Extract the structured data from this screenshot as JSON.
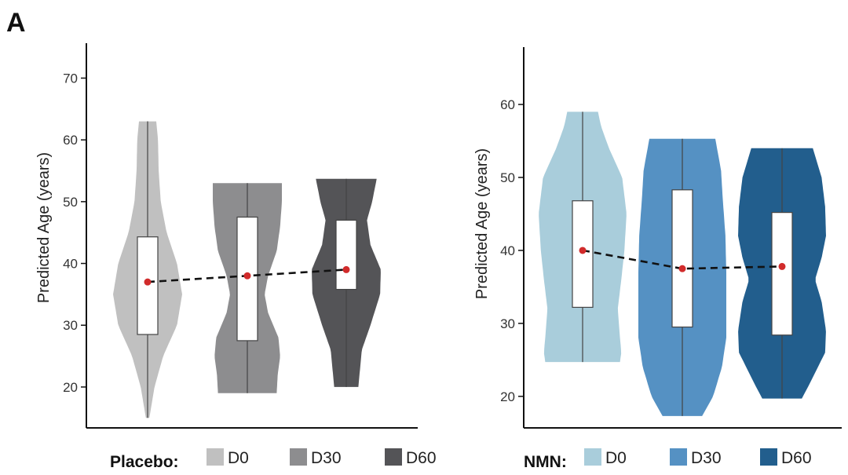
{
  "panel_label": "A",
  "chart_data": [
    {
      "type": "violin",
      "legend_title": "Placebo:",
      "ylabel": "Predicted Age (years)",
      "ylim": [
        13,
        74
      ],
      "yticks": [
        20,
        30,
        40,
        50,
        60,
        70
      ],
      "legend_position": "bottom",
      "grid": false,
      "mean_line": "dashed",
      "series": [
        {
          "name": "D0",
          "color": "#c0c0c0",
          "min": 15,
          "max": 63,
          "q1": 28.5,
          "median": 37,
          "q3": 44.3,
          "mean": 37,
          "density": [
            [
              15,
              0.05
            ],
            [
              20,
              0.2
            ],
            [
              25,
              0.45
            ],
            [
              30,
              0.85
            ],
            [
              35,
              1.0
            ],
            [
              40,
              0.85
            ],
            [
              45,
              0.55
            ],
            [
              50,
              0.38
            ],
            [
              55,
              0.32
            ],
            [
              60,
              0.3
            ],
            [
              63,
              0.25
            ]
          ]
        },
        {
          "name": "D30",
          "color": "#8d8d8f",
          "min": 19,
          "max": 53,
          "q1": 27.5,
          "median": 38,
          "q3": 47.5,
          "mean": 38,
          "density": [
            [
              19,
              0.85
            ],
            [
              22,
              0.88
            ],
            [
              25,
              0.95
            ],
            [
              28,
              0.9
            ],
            [
              32,
              0.6
            ],
            [
              35,
              0.5
            ],
            [
              38,
              0.6
            ],
            [
              42,
              0.85
            ],
            [
              46,
              0.95
            ],
            [
              50,
              1.0
            ],
            [
              53,
              1.0
            ]
          ]
        },
        {
          "name": "D60",
          "color": "#545457",
          "min": 20,
          "max": 53.7,
          "q1": 35.8,
          "median": 39,
          "q3": 47,
          "mean": 39,
          "density": [
            [
              20,
              0.35
            ],
            [
              23,
              0.4
            ],
            [
              26,
              0.45
            ],
            [
              30,
              0.7
            ],
            [
              35,
              0.98
            ],
            [
              39,
              1.0
            ],
            [
              43,
              0.7
            ],
            [
              47,
              0.6
            ],
            [
              50,
              0.75
            ],
            [
              53.7,
              0.88
            ]
          ]
        }
      ]
    },
    {
      "type": "violin",
      "legend_title": "NMN:",
      "ylabel": "Predicted Age (years)",
      "ylim": [
        16,
        67
      ],
      "yticks": [
        20,
        30,
        40,
        50,
        60
      ],
      "legend_position": "bottom",
      "grid": false,
      "mean_line": "dashed",
      "series": [
        {
          "name": "D0",
          "color": "#a9cddb",
          "min": 24.7,
          "max": 59,
          "q1": 32.2,
          "median": 40,
          "q3": 46.8,
          "mean": 40,
          "density": [
            [
              24.7,
              0.85
            ],
            [
              26,
              0.88
            ],
            [
              28,
              0.85
            ],
            [
              32,
              0.8
            ],
            [
              36,
              0.88
            ],
            [
              40,
              0.95
            ],
            [
              45,
              1.0
            ],
            [
              50,
              0.9
            ],
            [
              54,
              0.6
            ],
            [
              57,
              0.42
            ],
            [
              59,
              0.35
            ]
          ]
        },
        {
          "name": "D30",
          "color": "#5591c3",
          "min": 17.3,
          "max": 55.3,
          "q1": 29.5,
          "median": 37.5,
          "q3": 48.3,
          "mean": 37.5,
          "density": [
            [
              17.3,
              0.45
            ],
            [
              20,
              0.7
            ],
            [
              24,
              0.9
            ],
            [
              28,
              1.0
            ],
            [
              32,
              1.0
            ],
            [
              37,
              1.0
            ],
            [
              42,
              0.98
            ],
            [
              47,
              0.92
            ],
            [
              51,
              0.88
            ],
            [
              55.3,
              0.75
            ]
          ]
        },
        {
          "name": "D60",
          "color": "#225e8d",
          "min": 19.7,
          "max": 54,
          "q1": 28.4,
          "median": 37.8,
          "q3": 45.2,
          "mean": 37.8,
          "density": [
            [
              19.7,
              0.45
            ],
            [
              22,
              0.65
            ],
            [
              26,
              0.98
            ],
            [
              29,
              1.0
            ],
            [
              33,
              0.9
            ],
            [
              36,
              0.75
            ],
            [
              39,
              0.9
            ],
            [
              42,
              1.0
            ],
            [
              46,
              0.98
            ],
            [
              50,
              0.9
            ],
            [
              54,
              0.7
            ]
          ]
        }
      ]
    }
  ]
}
